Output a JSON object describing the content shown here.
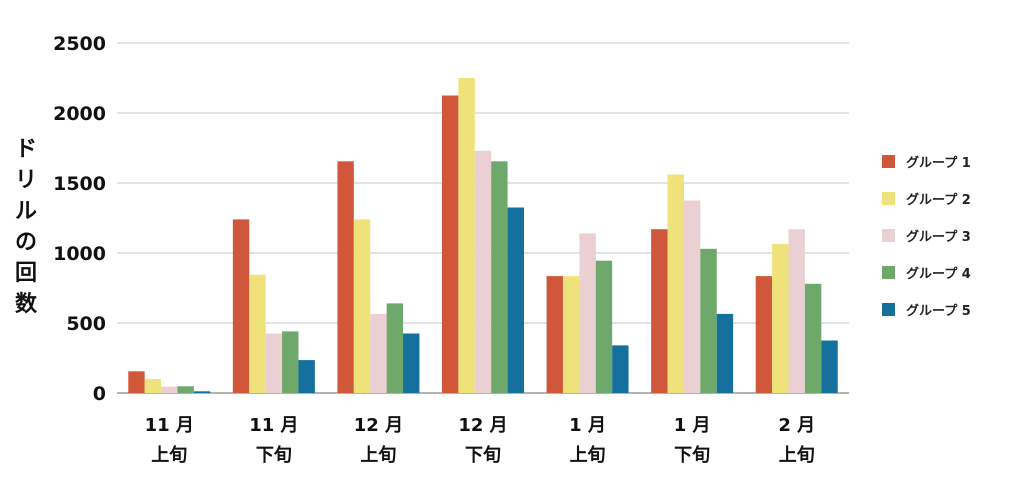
{
  "chart_data": {
    "type": "bar",
    "categories": [
      [
        "11 月",
        "上旬"
      ],
      [
        "11 月",
        "下旬"
      ],
      [
        "12 月",
        "上旬"
      ],
      [
        "12 月",
        "下旬"
      ],
      [
        "1 月",
        "上旬"
      ],
      [
        "1 月",
        "下旬"
      ],
      [
        "2 月",
        "上旬"
      ]
    ],
    "series": [
      {
        "name": "グループ 1",
        "color": "#d0573a",
        "values": [
          155,
          1240,
          1655,
          2125,
          835,
          1170,
          835
        ]
      },
      {
        "name": "グループ 2",
        "color": "#f0e27a",
        "values": [
          100,
          845,
          1240,
          2250,
          835,
          1560,
          1065
        ]
      },
      {
        "name": "グループ 3",
        "color": "#ead0d2",
        "values": [
          45,
          425,
          565,
          1730,
          1140,
          1375,
          1170
        ]
      },
      {
        "name": "グループ 4",
        "color": "#6fa86b",
        "values": [
          48,
          440,
          640,
          1655,
          945,
          1030,
          780
        ]
      },
      {
        "name": "グループ 5",
        "color": "#15709e",
        "values": [
          12,
          235,
          425,
          1325,
          340,
          565,
          375
        ]
      }
    ],
    "ylabel": [
      "ド",
      "リ",
      "ル",
      "の",
      "回",
      "数"
    ],
    "ylim": [
      0,
      2500
    ],
    "yticks": [
      0,
      500,
      1000,
      1500,
      2000,
      2500
    ],
    "grid": true,
    "legend_position": "right"
  }
}
